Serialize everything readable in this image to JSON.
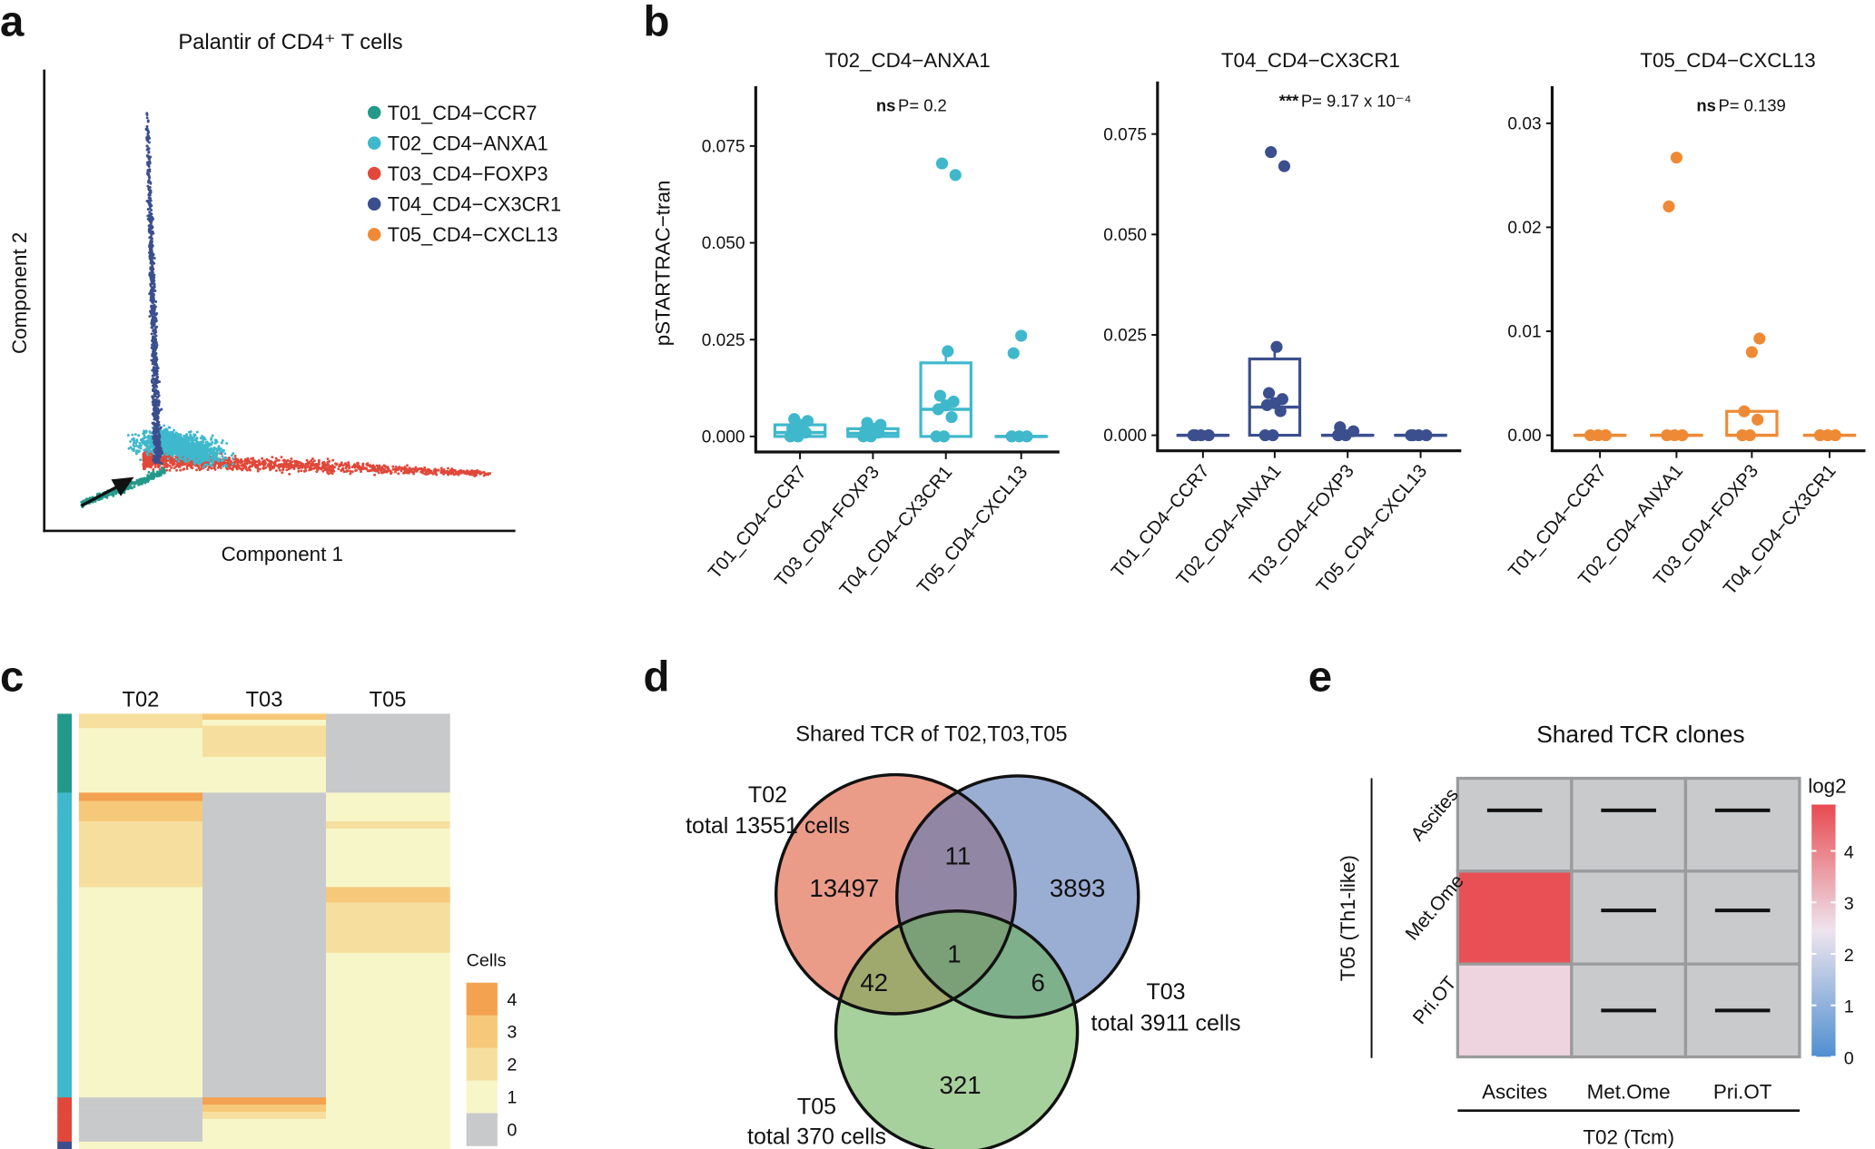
{
  "panel_labels": {
    "a": "a",
    "b": "b",
    "c": "c",
    "d": "d",
    "e": "e"
  },
  "chart_data": [
    {
      "type": "scatter",
      "title": "Palantir of CD4⁺ T cells",
      "xlabel": "Component 1",
      "ylabel": "Component 2",
      "grid": false,
      "legend_position": "top-right",
      "annotation": "arrow-icon pointing to start of trajectory (T01 cells)",
      "series": [
        {
          "name": "T01_CD4−CCR7",
          "color": "#22998A"
        },
        {
          "name": "T02_CD4−ANXA1",
          "color": "#3FB8CC"
        },
        {
          "name": "T03_CD4−FOXP3",
          "color": "#E0483A"
        },
        {
          "name": "T04_CD4−CX3CR1",
          "color": "#3B4F8E"
        },
        {
          "name": "T05_CD4−CXCL13",
          "color": "#EE8A35"
        }
      ]
    },
    {
      "type": "box",
      "ylabel": "pSTARTRAC−tran",
      "panels": [
        {
          "title": "T02_CD4−ANXA1",
          "color": "#3FB8CC",
          "stat_stars": "ns",
          "stat_p": "P= 0.2",
          "ylim": [
            0,
            0.09
          ],
          "yticks": [
            "0.000",
            "0.025",
            "0.050",
            "0.075"
          ],
          "ytick_values": [
            0,
            0.025,
            0.05,
            0.075
          ],
          "categories": [
            "T01_CD4−CCR7",
            "T03_CD4−FOXP3",
            "T04_CD4−CX3CR1",
            "T05_CD4−CXCL13"
          ],
          "boxes": [
            {
              "q1": 0,
              "median": 0.001,
              "q3": 0.003,
              "whisker_high": 0.004,
              "points": [
                0,
                0,
                0.001,
                0.002,
                0.003,
                0.004,
                0.0045
              ]
            },
            {
              "q1": 0,
              "median": 0.0008,
              "q3": 0.002,
              "whisker_high": 0.003,
              "points": [
                0,
                0,
                0.001,
                0.0015,
                0.002,
                0.003,
                0.0035
              ]
            },
            {
              "q1": 0,
              "median": 0.007,
              "q3": 0.019,
              "whisker_high": 0.022,
              "points": [
                0,
                0,
                0.005,
                0.007,
                0.008,
                0.009,
                0.0105,
                0.022,
                0.0675,
                0.0705
              ]
            },
            {
              "q1": 0,
              "median": 0,
              "q3": 0,
              "whisker_high": 0,
              "points": [
                0,
                0,
                0,
                0.0215,
                0.026
              ]
            }
          ]
        },
        {
          "title": "T04_CD4−CX3CR1",
          "color": "#3B4F8E",
          "stat_stars": "***",
          "stat_p": "P= 9.17 x 10⁻⁴",
          "ylim": [
            0,
            0.088
          ],
          "yticks": [
            "0.000",
            "0.025",
            "0.050",
            "0.075"
          ],
          "ytick_values": [
            0,
            0.025,
            0.05,
            0.075
          ],
          "categories": [
            "T01_CD4−CCR7",
            "T02_CD4−ANXA1",
            "T03_CD4−FOXP3",
            "T05_CD4−CXCL13"
          ],
          "boxes": [
            {
              "q1": 0,
              "median": 0,
              "q3": 0,
              "whisker_high": 0,
              "points": [
                0,
                0,
                0,
                0
              ]
            },
            {
              "q1": 0,
              "median": 0.007,
              "q3": 0.019,
              "whisker_high": 0.022,
              "points": [
                0,
                0,
                0.006,
                0.0075,
                0.008,
                0.009,
                0.0105,
                0.022,
                0.067,
                0.0705
              ]
            },
            {
              "q1": 0,
              "median": 0,
              "q3": 0,
              "whisker_high": 0,
              "points": [
                0,
                0,
                0.001,
                0.002
              ]
            },
            {
              "q1": 0,
              "median": 0,
              "q3": 0,
              "whisker_high": 0,
              "points": [
                0,
                0,
                0,
                0
              ]
            }
          ]
        },
        {
          "title": "T05_CD4−CXCL13",
          "color": "#EE8A35",
          "stat_stars": "ns",
          "stat_p": "P= 0.139",
          "ylim": [
            0,
            0.033
          ],
          "yticks": [
            "0.00",
            "0.01",
            "0.02",
            "0.03"
          ],
          "ytick_values": [
            0,
            0.01,
            0.02,
            0.03
          ],
          "categories": [
            "T01_CD4−CCR7",
            "T02_CD4−ANXA1",
            "T03_CD4−FOXP3",
            "T04_CD4−CX3CR1"
          ],
          "boxes": [
            {
              "q1": 0,
              "median": 0,
              "q3": 0,
              "whisker_high": 0,
              "points": [
                0,
                0,
                0
              ]
            },
            {
              "q1": 0,
              "median": 0,
              "q3": 0,
              "whisker_high": 0,
              "points": [
                0,
                0,
                0,
                0.022,
                0.0267
              ]
            },
            {
              "q1": 0,
              "median": 0,
              "q3": 0.0023,
              "whisker_high": 0.0023,
              "points": [
                0,
                0,
                0.0015,
                0.0023,
                0.008,
                0.0093
              ]
            },
            {
              "q1": 0,
              "median": 0,
              "q3": 0,
              "whisker_high": 0,
              "points": [
                0,
                0,
                0
              ]
            }
          ]
        }
      ]
    },
    {
      "type": "heatmap",
      "columns": [
        "T02",
        "T03",
        "T05"
      ],
      "legend_title": "Cells",
      "legend_ticks": [
        "4",
        "3",
        "2",
        "1",
        "0"
      ],
      "colors": {
        "0": "#C8C9CB",
        "1": "#F6F6C8",
        "2": "#F6DF9E",
        "3": "#F6C97A",
        "4": "#F3A250"
      },
      "group_colors": {
        "T01": "#22998A",
        "T02": "#3FB8CC",
        "T03": "#E0483A",
        "T04": "#3B4F8E"
      },
      "row_blocks": [
        {
          "group": "T01",
          "rows": 5,
          "values": [
            2,
            3,
            0
          ]
        },
        {
          "group": "T01",
          "rows": 5,
          "values": [
            2,
            1,
            0
          ]
        },
        {
          "group": "T01",
          "rows": 2,
          "values": [
            2,
            2,
            0
          ]
        },
        {
          "group": "T01",
          "rows": 24,
          "values": [
            1,
            2,
            0
          ]
        },
        {
          "group": "T01",
          "rows": 30,
          "values": [
            1,
            1,
            0
          ]
        },
        {
          "group": "T02",
          "rows": 7,
          "values": [
            4,
            0,
            1
          ]
        },
        {
          "group": "T02",
          "rows": 17,
          "values": [
            3,
            0,
            1
          ]
        },
        {
          "group": "T02",
          "rows": 6,
          "values": [
            2,
            0,
            2
          ]
        },
        {
          "group": "T02",
          "rows": 49,
          "values": [
            2,
            0,
            1
          ]
        },
        {
          "group": "T02",
          "rows": 13,
          "values": [
            1,
            0,
            3
          ]
        },
        {
          "group": "T02",
          "rows": 42,
          "values": [
            1,
            0,
            2
          ]
        },
        {
          "group": "T02",
          "rows": 121,
          "values": [
            1,
            0,
            1
          ]
        },
        {
          "group": "T03",
          "rows": 6,
          "values": [
            0,
            4,
            1
          ]
        },
        {
          "group": "T03",
          "rows": 6,
          "values": [
            0,
            3,
            1
          ]
        },
        {
          "group": "T03",
          "rows": 6,
          "values": [
            0,
            2,
            1
          ]
        },
        {
          "group": "T03",
          "rows": 19,
          "values": [
            0,
            1,
            1
          ]
        },
        {
          "group": "T04",
          "rows": 6,
          "values": [
            1,
            1,
            1
          ]
        }
      ]
    },
    {
      "type": "venn",
      "title": "Shared TCR of T02,T03,T05",
      "sets": [
        {
          "name": "T02",
          "total_label": "total 13551 cells",
          "color": "#DE5A3A"
        },
        {
          "name": "T03",
          "total_label": "total 3911 cells",
          "color": "#5678B8"
        },
        {
          "name": "T05",
          "total_label": "total 370 cells",
          "color": "#6CB35A"
        }
      ],
      "regions": {
        "T02_only": "13497",
        "T03_only": "3893",
        "T05_only": "321",
        "T02_T03": "11",
        "T02_T05": "42",
        "T03_T05": "6",
        "T02_T03_T05": "1"
      }
    },
    {
      "type": "heatmap",
      "title": "Shared TCR clones",
      "xlabel": "T02 (Tcm)",
      "ylabel": "T05 (Th1-like)",
      "columns": [
        "Ascites",
        "Met.Ome",
        "Pri.OT"
      ],
      "rows": [
        "Ascites",
        "Met.Ome",
        "Pri.OT"
      ],
      "values": [
        [
          null,
          null,
          null
        ],
        [
          4.8,
          null,
          null
        ],
        [
          2.7,
          null,
          null
        ]
      ],
      "missing_mark": "—",
      "missing_color": "#C9CACC",
      "legend_title": "log2",
      "legend_ticks": [
        "0",
        "1",
        "2",
        "3",
        "4"
      ],
      "legend_range": [
        0,
        4.9
      ],
      "colormap": [
        "#4F8FD0",
        "#EEE4EE",
        "#E84A50"
      ]
    }
  ]
}
